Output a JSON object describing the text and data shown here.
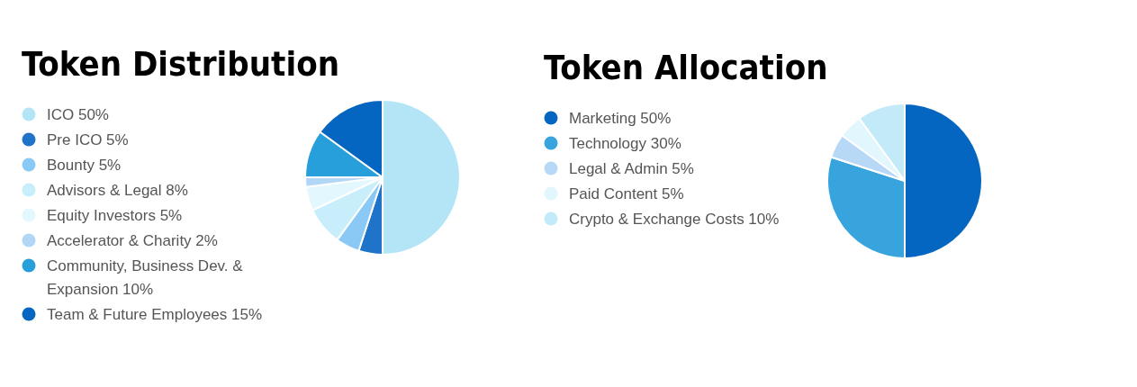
{
  "chart_data": [
    {
      "type": "pie",
      "title": "Token Distribution",
      "legend": "left",
      "categories": [
        "ICO 50%",
        "Pre ICO 5%",
        "Bounty 5%",
        "Advisors & Legal 8%",
        "Equity Investors 5%",
        "Accelerator & Charity 2%",
        "Community, Business Dev. & Expansion 10%",
        "Team & Future Employees 15%"
      ],
      "values": [
        50,
        5,
        5,
        8,
        5,
        2,
        10,
        15
      ],
      "colors": [
        "#b3e5f7",
        "#1f74c9",
        "#8ac8f5",
        "#c9eefb",
        "#e3f8fe",
        "#b2d6f6",
        "#279fda",
        "#0466c0"
      ]
    },
    {
      "type": "pie",
      "title": "Token Allocation",
      "legend": "left",
      "categories": [
        "Marketing 50%",
        "Technology 30%",
        "Legal & Admin 5%",
        "Paid Content 5%",
        "Crypto & Exchange Costs 10%"
      ],
      "values": [
        50,
        30,
        5,
        5,
        10
      ],
      "colors": [
        "#0466c0",
        "#38a4dd",
        "#b7d8f6",
        "#e1f6fd",
        "#c3eaf8"
      ]
    }
  ]
}
